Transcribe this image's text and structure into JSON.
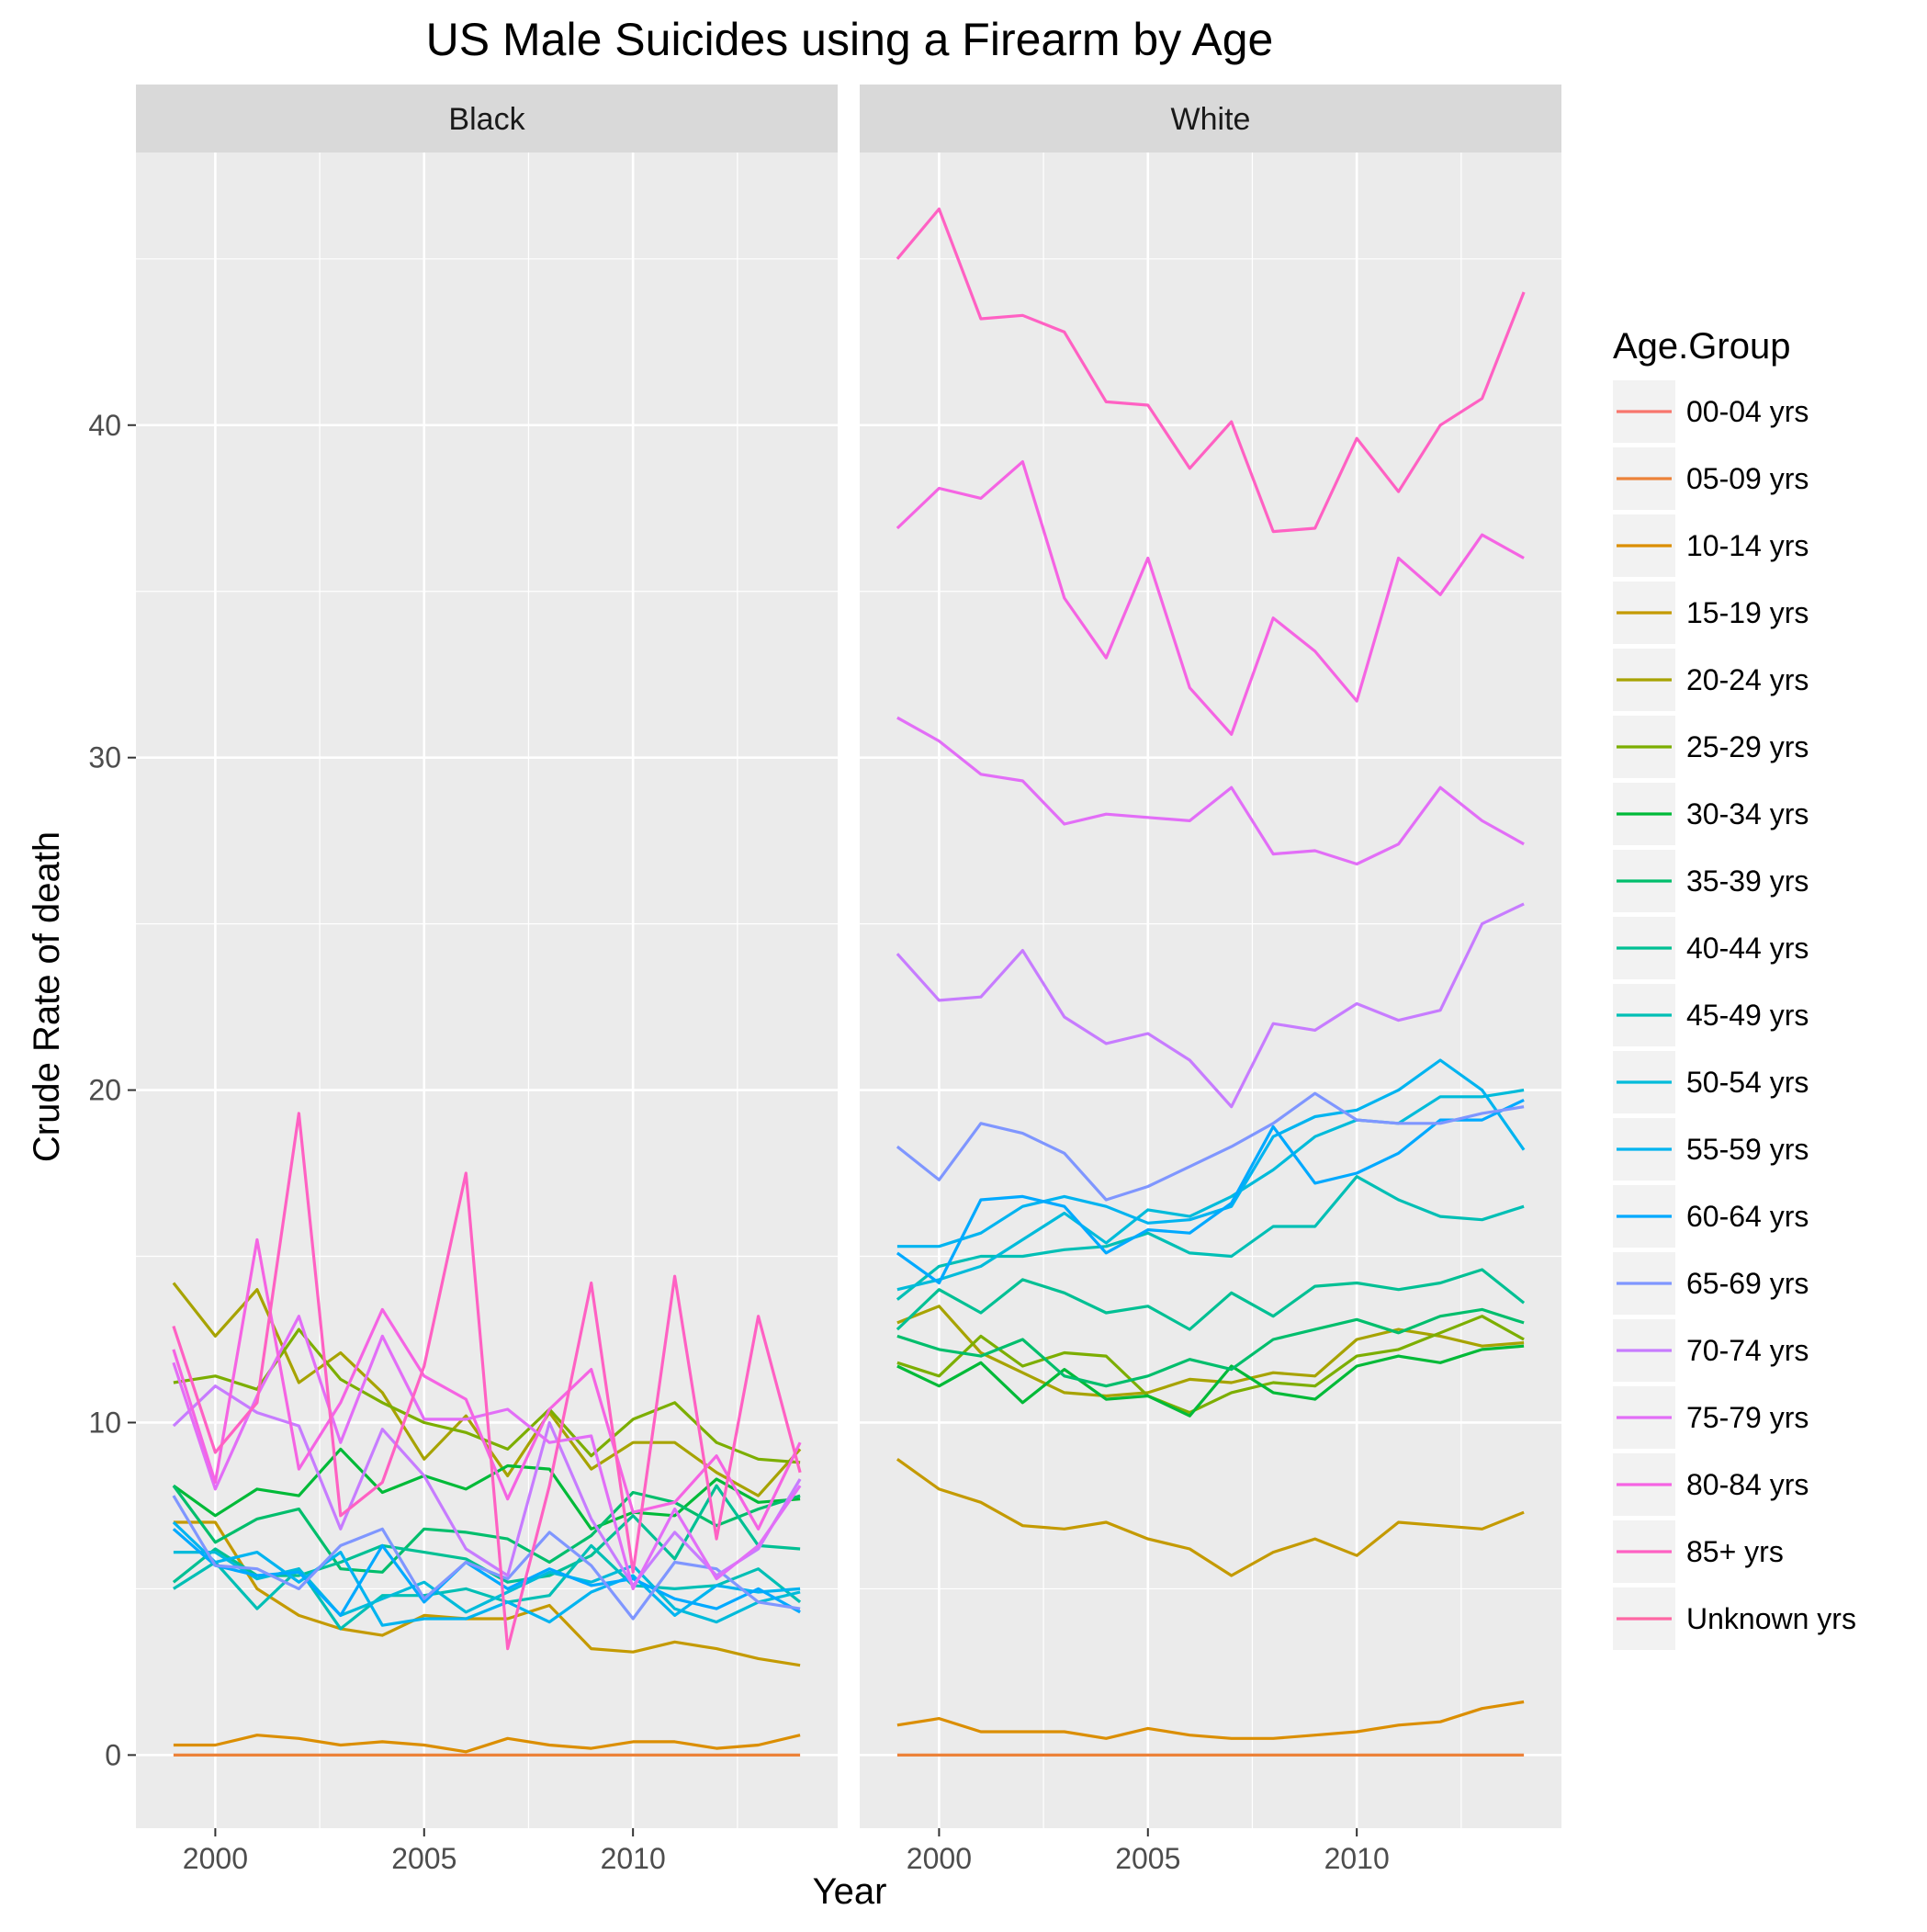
{
  "chart_data": {
    "type": "line",
    "title": "US Male Suicides using a Firearm by Age",
    "xlabel": "Year",
    "ylabel": "Crude Rate of death",
    "xlim": [
      1998.1,
      2014.9
    ],
    "ylim": [
      -2.2,
      48.2
    ],
    "x_ticks": [
      2000,
      2005,
      2010
    ],
    "y_ticks": [
      0,
      10,
      20,
      30,
      40
    ],
    "grid": true,
    "legend": {
      "title": "Age.Group",
      "position": "right"
    },
    "panel_background": "#EBEBEB",
    "strip_background": "#D9D9D9",
    "years": [
      1999,
      2000,
      2001,
      2002,
      2003,
      2004,
      2005,
      2006,
      2007,
      2008,
      2009,
      2010,
      2011,
      2012,
      2013,
      2014
    ],
    "series_colors": {
      "00-04 yrs": "#F8766D",
      "05-09 yrs": "#EC8239",
      "10-14 yrs": "#DB8E00",
      "15-19 yrs": "#C49A00",
      "20-24 yrs": "#A7A300",
      "25-29 yrs": "#7CAE00",
      "30-34 yrs": "#00BA38",
      "35-39 yrs": "#00BE6C",
      "40-44 yrs": "#00C094",
      "45-49 yrs": "#00BFB5",
      "50-54 yrs": "#00BBDA",
      "55-59 yrs": "#00B4F0",
      "60-64 yrs": "#00A9FF",
      "65-69 yrs": "#7F96FF",
      "70-74 yrs": "#C77CFF",
      "75-79 yrs": "#E26EF7",
      "80-84 yrs": "#F564E3",
      "85+ yrs": "#FF61C3",
      "Unknown yrs": "#FF67A4"
    },
    "legend_entries": [
      "00-04 yrs",
      "05-09 yrs",
      "10-14 yrs",
      "15-19 yrs",
      "20-24 yrs",
      "25-29 yrs",
      "30-34 yrs",
      "35-39 yrs",
      "40-44 yrs",
      "45-49 yrs",
      "50-54 yrs",
      "55-59 yrs",
      "60-64 yrs",
      "65-69 yrs",
      "70-74 yrs",
      "75-79 yrs",
      "80-84 yrs",
      "85+ yrs",
      "Unknown yrs"
    ],
    "panels": [
      {
        "name": "Black",
        "series": [
          {
            "name": "05-09 yrs",
            "values": [
              0,
              0,
              0,
              0,
              0,
              0,
              0,
              0,
              0,
              0,
              0,
              0,
              0,
              0,
              0,
              0
            ]
          },
          {
            "name": "10-14 yrs",
            "values": [
              0.3,
              0.3,
              0.6,
              0.5,
              0.3,
              0.4,
              0.3,
              0.1,
              0.5,
              0.3,
              0.2,
              0.4,
              0.4,
              0.2,
              0.3,
              0.6
            ]
          },
          {
            "name": "15-19 yrs",
            "values": [
              7.0,
              7.0,
              5.0,
              4.2,
              3.8,
              3.6,
              4.2,
              4.1,
              4.1,
              4.5,
              3.2,
              3.1,
              3.4,
              3.2,
              2.9,
              2.7
            ]
          },
          {
            "name": "20-24 yrs",
            "values": [
              14.2,
              12.6,
              14.0,
              11.2,
              12.1,
              10.9,
              8.9,
              10.2,
              8.4,
              10.3,
              8.6,
              9.4,
              9.4,
              8.5,
              7.8,
              9.2
            ]
          },
          {
            "name": "25-29 yrs",
            "values": [
              11.2,
              11.4,
              11.0,
              12.8,
              11.3,
              10.6,
              10.0,
              9.7,
              9.2,
              10.4,
              9.0,
              10.1,
              10.6,
              9.4,
              8.9,
              8.8
            ]
          },
          {
            "name": "30-34 yrs",
            "values": [
              8.1,
              7.2,
              8.0,
              7.8,
              9.2,
              7.9,
              8.4,
              8.0,
              8.7,
              8.6,
              6.8,
              7.3,
              7.2,
              8.3,
              7.6,
              7.7
            ]
          },
          {
            "name": "35-39 yrs",
            "values": [
              8.1,
              6.4,
              7.1,
              7.4,
              5.6,
              5.5,
              6.8,
              6.7,
              6.5,
              5.8,
              6.6,
              7.9,
              7.6,
              6.9,
              7.4,
              7.8
            ]
          },
          {
            "name": "40-44 yrs",
            "values": [
              5.2,
              6.2,
              5.4,
              5.4,
              5.8,
              6.3,
              6.1,
              5.9,
              5.2,
              5.4,
              6.0,
              7.2,
              5.9,
              8.1,
              6.3,
              6.2
            ]
          },
          {
            "name": "45-49 yrs",
            "values": [
              5.0,
              5.8,
              4.4,
              5.6,
              3.8,
              4.8,
              4.8,
              5.0,
              4.6,
              4.8,
              6.3,
              5.1,
              5.0,
              5.1,
              5.6,
              4.6
            ]
          },
          {
            "name": "50-54 yrs",
            "values": [
              6.1,
              6.1,
              5.3,
              5.6,
              4.2,
              4.7,
              5.2,
              4.3,
              4.9,
              5.5,
              5.2,
              5.7,
              4.4,
              4.0,
              4.6,
              4.9
            ]
          },
          {
            "name": "55-59 yrs",
            "values": [
              7.0,
              5.8,
              6.1,
              5.2,
              6.1,
              3.9,
              4.1,
              4.1,
              4.6,
              4.0,
              4.9,
              5.4,
              4.2,
              5.1,
              4.9,
              5.0
            ]
          },
          {
            "name": "60-64 yrs",
            "values": [
              6.8,
              5.7,
              5.4,
              5.5,
              4.2,
              6.3,
              4.6,
              5.8,
              5.0,
              5.6,
              5.1,
              5.3,
              4.7,
              4.4,
              5.0,
              4.3
            ]
          },
          {
            "name": "65-69 yrs",
            "values": [
              7.8,
              5.7,
              5.6,
              5.0,
              6.3,
              6.8,
              4.7,
              5.8,
              5.3,
              6.7,
              5.7,
              4.1,
              5.8,
              5.6,
              4.6,
              4.4
            ]
          },
          {
            "name": "70-74 yrs",
            "values": [
              9.9,
              11.1,
              10.3,
              9.9,
              6.8,
              9.8,
              8.4,
              6.2,
              5.4,
              10.0,
              7.1,
              5.1,
              6.7,
              5.4,
              6.2,
              8.3
            ]
          },
          {
            "name": "75-79 yrs",
            "values": [
              11.8,
              8.0,
              10.8,
              13.2,
              9.4,
              12.6,
              10.1,
              10.1,
              10.4,
              9.4,
              9.6,
              5.0,
              7.4,
              5.3,
              6.3,
              8.1
            ]
          },
          {
            "name": "80-84 yrs",
            "values": [
              12.2,
              8.2,
              15.5,
              8.6,
              10.6,
              13.4,
              11.4,
              10.7,
              7.7,
              10.4,
              11.6,
              7.3,
              7.6,
              9.0,
              6.8,
              9.4
            ]
          },
          {
            "name": "85+ yrs",
            "values": [
              12.9,
              9.1,
              10.6,
              19.3,
              7.2,
              8.2,
              11.7,
              17.5,
              3.2,
              8.1,
              14.2,
              5.5,
              14.4,
              6.5,
              13.2,
              8.5
            ]
          }
        ]
      },
      {
        "name": "White",
        "series": [
          {
            "name": "05-09 yrs",
            "values": [
              0,
              0,
              0,
              0,
              0,
              0,
              0,
              0,
              0,
              0,
              0,
              0,
              0,
              0,
              0,
              0
            ]
          },
          {
            "name": "10-14 yrs",
            "values": [
              0.9,
              1.1,
              0.7,
              0.7,
              0.7,
              0.5,
              0.8,
              0.6,
              0.5,
              0.5,
              0.6,
              0.7,
              0.9,
              1.0,
              1.4,
              1.6
            ]
          },
          {
            "name": "15-19 yrs",
            "values": [
              8.9,
              8.0,
              7.6,
              6.9,
              6.8,
              7.0,
              6.5,
              6.2,
              5.4,
              6.1,
              6.5,
              6.0,
              7.0,
              6.9,
              6.8,
              7.3
            ]
          },
          {
            "name": "20-24 yrs",
            "values": [
              13.0,
              13.5,
              12.1,
              11.5,
              10.9,
              10.8,
              10.9,
              11.3,
              11.2,
              11.5,
              11.4,
              12.5,
              12.8,
              12.6,
              12.3,
              12.4
            ]
          },
          {
            "name": "25-29 yrs",
            "values": [
              11.8,
              11.4,
              12.6,
              11.7,
              12.1,
              12.0,
              10.8,
              10.3,
              10.9,
              11.2,
              11.1,
              12.0,
              12.2,
              12.7,
              13.2,
              12.5
            ]
          },
          {
            "name": "30-34 yrs",
            "values": [
              11.7,
              11.1,
              11.8,
              10.6,
              11.6,
              10.7,
              10.8,
              10.2,
              11.7,
              10.9,
              10.7,
              11.7,
              12.0,
              11.8,
              12.2,
              12.3
            ]
          },
          {
            "name": "35-39 yrs",
            "values": [
              12.6,
              12.2,
              12.0,
              12.5,
              11.4,
              11.1,
              11.4,
              11.9,
              11.6,
              12.5,
              12.8,
              13.1,
              12.7,
              13.2,
              13.4,
              13.0
            ]
          },
          {
            "name": "40-44 yrs",
            "values": [
              12.8,
              14.0,
              13.3,
              14.3,
              13.9,
              13.3,
              13.5,
              12.8,
              13.9,
              13.2,
              14.1,
              14.2,
              14.0,
              14.2,
              14.6,
              13.6
            ]
          },
          {
            "name": "45-49 yrs",
            "values": [
              13.7,
              14.7,
              15.0,
              15.0,
              15.2,
              15.3,
              15.7,
              15.1,
              15.0,
              15.9,
              15.9,
              17.4,
              16.7,
              16.2,
              16.1,
              16.5
            ]
          },
          {
            "name": "50-54 yrs",
            "values": [
              14.0,
              14.3,
              14.7,
              15.5,
              16.3,
              15.4,
              16.4,
              16.2,
              16.8,
              17.6,
              18.6,
              19.1,
              19.0,
              19.8,
              19.8,
              20.0
            ]
          },
          {
            "name": "55-59 yrs",
            "values": [
              15.3,
              15.3,
              15.7,
              16.5,
              16.8,
              16.5,
              16.0,
              16.1,
              16.5,
              18.6,
              19.2,
              19.4,
              20.0,
              20.9,
              20.0,
              18.2
            ]
          },
          {
            "name": "60-64 yrs",
            "values": [
              15.1,
              14.2,
              16.7,
              16.8,
              16.5,
              15.1,
              15.8,
              15.7,
              16.6,
              18.9,
              17.2,
              17.5,
              18.1,
              19.1,
              19.1,
              19.7
            ]
          },
          {
            "name": "65-69 yrs",
            "values": [
              18.3,
              17.3,
              19.0,
              18.7,
              18.1,
              16.7,
              17.1,
              17.7,
              18.3,
              19.0,
              19.9,
              19.1,
              19.0,
              19.0,
              19.3,
              19.5
            ]
          },
          {
            "name": "70-74 yrs",
            "values": [
              24.1,
              22.7,
              22.8,
              24.2,
              22.2,
              21.4,
              21.7,
              20.9,
              19.5,
              22.0,
              21.8,
              22.6,
              22.1,
              22.4,
              25.0,
              25.6
            ]
          },
          {
            "name": "75-79 yrs",
            "values": [
              31.2,
              30.5,
              29.5,
              29.3,
              28.0,
              28.3,
              28.2,
              28.1,
              29.1,
              27.1,
              27.2,
              26.8,
              27.4,
              29.1,
              28.1,
              27.4
            ]
          },
          {
            "name": "80-84 yrs",
            "values": [
              36.9,
              38.1,
              37.8,
              38.9,
              34.8,
              33.0,
              36.0,
              32.1,
              30.7,
              34.2,
              33.2,
              31.7,
              36.0,
              34.9,
              36.7,
              36.0
            ]
          },
          {
            "name": "85+ yrs",
            "values": [
              45.0,
              46.5,
              43.2,
              43.3,
              42.8,
              40.7,
              40.6,
              38.7,
              40.1,
              36.8,
              36.9,
              39.6,
              38.0,
              40.0,
              40.8,
              44.0
            ]
          }
        ]
      }
    ]
  }
}
